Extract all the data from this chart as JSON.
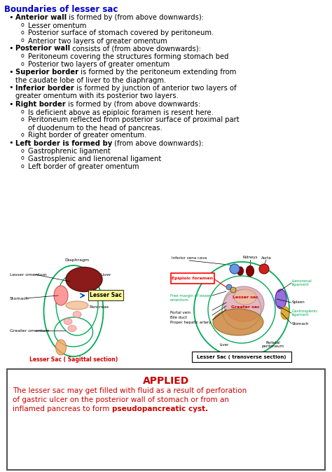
{
  "title": "Boundaries of lesser sac",
  "title_color": "#0000CC",
  "background": "#ffffff",
  "applied_title": "APPLIED",
  "applied_title_color": "#CC0000",
  "applied_body_color": "#CC0000",
  "applied_bold": "pseudopancreatic cyst.",
  "bullet_items": [
    {
      "bold": "Anterior wall",
      "normal": " is formed by (from above downwards):",
      "sub": [
        "Lesser omentum",
        "Posterior surface of stomach covered by peritoneum.",
        "Anterior two layers of greater omentum"
      ]
    },
    {
      "bold": "Posterior wall",
      "normal": " consists of (from above downwards):",
      "sub": [
        "Peritoneum covering the structures forming stomach bed",
        "Posterior two layers of greater omentum"
      ]
    },
    {
      "bold": "Superior border",
      "normal": " is formed by the peritoneum extending from\nthe caudate lobe of liver to the diaphragm.",
      "sub": []
    },
    {
      "bold": "Inferior border",
      "normal": " is formed by junction of anterior two layers of\ngreater omentum with its posterior two layers.",
      "sub": []
    },
    {
      "bold": "Right border",
      "normal": " is formed by (from above downwards:",
      "sub": [
        "Is deficient above as epiploic foramen is resent here.",
        "Peritoneum reflected from posterior surface of proximal part\nof duodenum to the head of pancreas.",
        "Right border of greater omentum."
      ]
    },
    {
      "bold": "Left border is formed by",
      "normal": " (from above downwards):",
      "sub": [
        "Gastrophrenic ligament",
        "Gastrosplenic and lienorenal ligament",
        "Left border of greater omentum"
      ]
    }
  ]
}
